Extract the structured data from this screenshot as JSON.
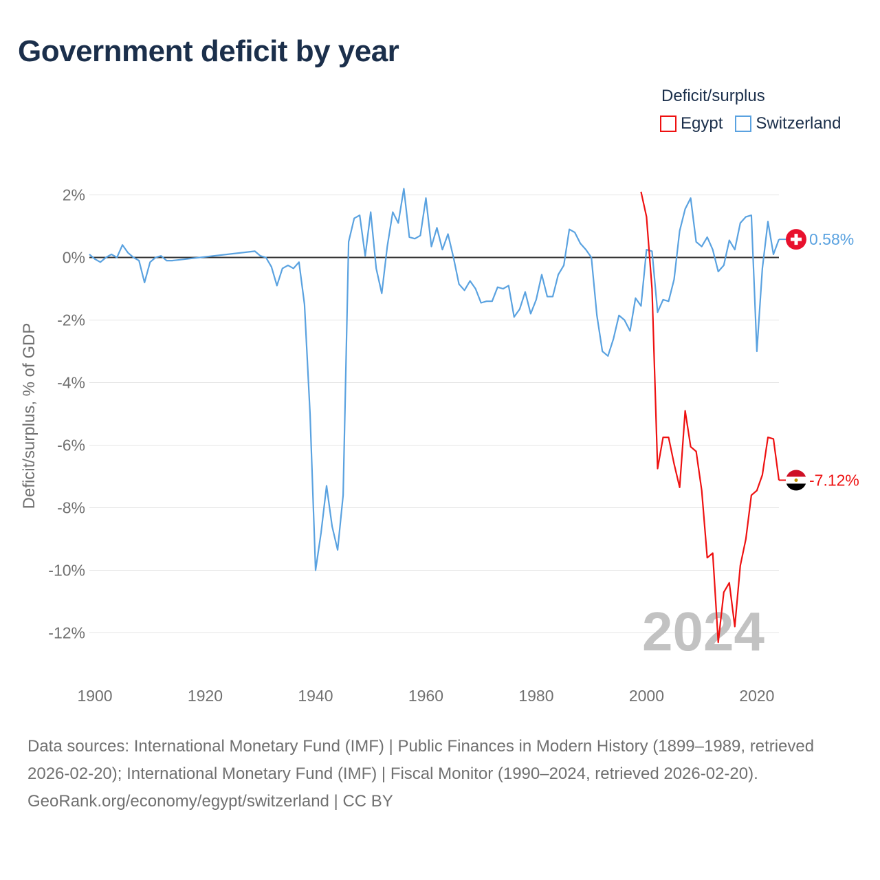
{
  "title": "Government deficit by year",
  "legend": {
    "title": "Deficit/surplus",
    "items": [
      {
        "label": "Egypt",
        "color": "#ee1111"
      },
      {
        "label": "Switzerland",
        "color": "#5aa2e0"
      }
    ]
  },
  "year_watermark": "2024",
  "end_labels": {
    "switzerland": "0.58%",
    "egypt": "-7.12%"
  },
  "footer": {
    "sources": "Data sources: International Monetary Fund (IMF) | Public Finances in Modern History (1899–1989, retrieved 2026-02-20); International Monetary Fund (IMF) | Fiscal Monitor (1990–2024, retrieved 2026-02-20).",
    "credit": "GeoRank.org/economy/egypt/switzerland | CC BY"
  },
  "chart_data": {
    "type": "line",
    "title": "Government deficit by year",
    "ylabel": "Deficit/surplus, % of GDP",
    "xlabel": "",
    "xlim": [
      1899,
      2024
    ],
    "ylim": [
      -13,
      2.5
    ],
    "x_ticks": [
      1900,
      1920,
      1940,
      1960,
      1980,
      2000,
      2020
    ],
    "y_ticks": [
      2,
      0,
      -2,
      -4,
      -6,
      -8,
      -10,
      -12
    ],
    "y_tick_labels": [
      "2%",
      "0%",
      "-2%",
      "-4%",
      "-6%",
      "-8%",
      "-10%",
      "-12%"
    ],
    "series": [
      {
        "name": "Switzerland",
        "color": "#5aa2e0",
        "gaps": [
          [
            1912,
            1929
          ]
        ],
        "points": [
          [
            1899,
            0.1
          ],
          [
            1900,
            -0.05
          ],
          [
            1901,
            -0.15
          ],
          [
            1902,
            0.0
          ],
          [
            1903,
            0.1
          ],
          [
            1904,
            0.0
          ],
          [
            1905,
            0.4
          ],
          [
            1906,
            0.15
          ],
          [
            1907,
            0.0
          ],
          [
            1908,
            -0.1
          ],
          [
            1909,
            -0.8
          ],
          [
            1910,
            -0.15
          ],
          [
            1911,
            0.0
          ],
          [
            1912,
            0.05
          ],
          [
            1913,
            -0.1
          ],
          [
            1914,
            -0.1
          ],
          [
            1929,
            0.2
          ],
          [
            1930,
            0.05
          ],
          [
            1931,
            0.0
          ],
          [
            1932,
            -0.3
          ],
          [
            1933,
            -0.9
          ],
          [
            1934,
            -0.35
          ],
          [
            1935,
            -0.25
          ],
          [
            1936,
            -0.35
          ],
          [
            1937,
            -0.15
          ],
          [
            1938,
            -1.5
          ],
          [
            1939,
            -5.0
          ],
          [
            1940,
            -10.0
          ],
          [
            1941,
            -8.8
          ],
          [
            1942,
            -7.3
          ],
          [
            1943,
            -8.6
          ],
          [
            1944,
            -9.35
          ],
          [
            1945,
            -7.6
          ],
          [
            1946,
            0.5
          ],
          [
            1947,
            1.25
          ],
          [
            1948,
            1.35
          ],
          [
            1949,
            0.05
          ],
          [
            1950,
            1.45
          ],
          [
            1951,
            -0.35
          ],
          [
            1952,
            -1.15
          ],
          [
            1953,
            0.35
          ],
          [
            1954,
            1.45
          ],
          [
            1955,
            1.1
          ],
          [
            1956,
            2.2
          ],
          [
            1957,
            0.65
          ],
          [
            1958,
            0.6
          ],
          [
            1959,
            0.7
          ],
          [
            1960,
            1.9
          ],
          [
            1961,
            0.35
          ],
          [
            1962,
            0.95
          ],
          [
            1963,
            0.25
          ],
          [
            1964,
            0.75
          ],
          [
            1965,
            0.0
          ],
          [
            1966,
            -0.85
          ],
          [
            1967,
            -1.05
          ],
          [
            1968,
            -0.75
          ],
          [
            1969,
            -1.0
          ],
          [
            1970,
            -1.45
          ],
          [
            1971,
            -1.4
          ],
          [
            1972,
            -1.4
          ],
          [
            1973,
            -0.95
          ],
          [
            1974,
            -1.0
          ],
          [
            1975,
            -0.9
          ],
          [
            1976,
            -1.9
          ],
          [
            1977,
            -1.65
          ],
          [
            1978,
            -1.1
          ],
          [
            1979,
            -1.8
          ],
          [
            1980,
            -1.35
          ],
          [
            1981,
            -0.55
          ],
          [
            1982,
            -1.25
          ],
          [
            1983,
            -1.25
          ],
          [
            1984,
            -0.55
          ],
          [
            1985,
            -0.25
          ],
          [
            1986,
            0.9
          ],
          [
            1987,
            0.8
          ],
          [
            1988,
            0.45
          ],
          [
            1989,
            0.25
          ],
          [
            1990,
            0.0
          ],
          [
            1991,
            -1.85
          ],
          [
            1992,
            -3.0
          ],
          [
            1993,
            -3.15
          ],
          [
            1994,
            -2.6
          ],
          [
            1995,
            -1.85
          ],
          [
            1996,
            -2.0
          ],
          [
            1997,
            -2.35
          ],
          [
            1998,
            -1.3
          ],
          [
            1999,
            -1.55
          ],
          [
            2000,
            0.25
          ],
          [
            2001,
            0.2
          ],
          [
            2002,
            -1.75
          ],
          [
            2003,
            -1.35
          ],
          [
            2004,
            -1.4
          ],
          [
            2005,
            -0.7
          ],
          [
            2006,
            0.85
          ],
          [
            2007,
            1.55
          ],
          [
            2008,
            1.9
          ],
          [
            2009,
            0.5
          ],
          [
            2010,
            0.35
          ],
          [
            2011,
            0.65
          ],
          [
            2012,
            0.25
          ],
          [
            2013,
            -0.45
          ],
          [
            2014,
            -0.25
          ],
          [
            2015,
            0.55
          ],
          [
            2016,
            0.25
          ],
          [
            2017,
            1.1
          ],
          [
            2018,
            1.3
          ],
          [
            2019,
            1.35
          ],
          [
            2020,
            -3.0
          ],
          [
            2021,
            -0.35
          ],
          [
            2022,
            1.15
          ],
          [
            2023,
            0.1
          ],
          [
            2024,
            0.58
          ]
        ]
      },
      {
        "name": "Egypt",
        "color": "#ee1111",
        "gaps": [],
        "points": [
          [
            1999,
            2.1
          ],
          [
            2000,
            1.3
          ],
          [
            2001,
            -1.0
          ],
          [
            2002,
            -6.75
          ],
          [
            2003,
            -5.75
          ],
          [
            2004,
            -5.75
          ],
          [
            2005,
            -6.6
          ],
          [
            2006,
            -7.35
          ],
          [
            2007,
            -4.9
          ],
          [
            2008,
            -6.05
          ],
          [
            2009,
            -6.2
          ],
          [
            2010,
            -7.45
          ],
          [
            2011,
            -9.6
          ],
          [
            2012,
            -9.45
          ],
          [
            2013,
            -12.3
          ],
          [
            2014,
            -10.7
          ],
          [
            2015,
            -10.4
          ],
          [
            2016,
            -11.8
          ],
          [
            2017,
            -9.85
          ],
          [
            2018,
            -9.0
          ],
          [
            2019,
            -7.6
          ],
          [
            2020,
            -7.45
          ],
          [
            2021,
            -6.95
          ],
          [
            2022,
            -5.75
          ],
          [
            2023,
            -5.8
          ],
          [
            2024,
            -7.12
          ]
        ]
      }
    ]
  }
}
